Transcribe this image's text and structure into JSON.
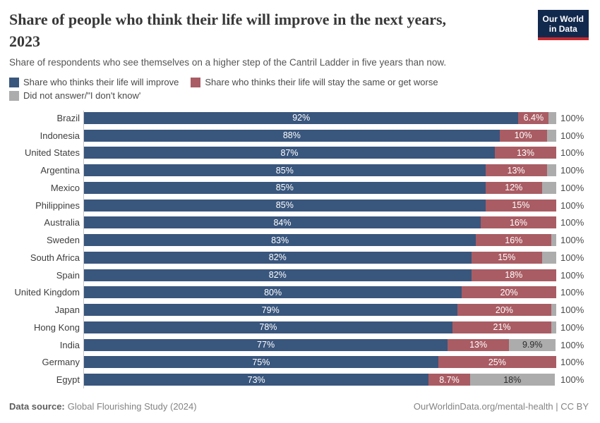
{
  "header": {
    "title_line1": "Share of people who think their life will improve in the next years,",
    "title_line2": "2023",
    "subtitle": "Share of respondents who see themselves on a higher step of the Cantril Ladder in five years than now.",
    "logo_line1": "Our World",
    "logo_line2": "in Data",
    "logo_colors": {
      "background": "#12294E",
      "stripe": "#C5292E"
    }
  },
  "chart_data": {
    "type": "bar",
    "stacked": true,
    "orientation": "horizontal",
    "title": "Share of people who think their life will improve in the next years, 2023",
    "unit": "%",
    "xlim": [
      0,
      100
    ],
    "grid": false,
    "legend_position": "top",
    "row_total_label": "100%",
    "categories": [
      "Brazil",
      "Indonesia",
      "United States",
      "Argentina",
      "Mexico",
      "Philippines",
      "Australia",
      "Sweden",
      "South Africa",
      "Spain",
      "United Kingdom",
      "Japan",
      "Hong Kong",
      "India",
      "Germany",
      "Egypt"
    ],
    "series": [
      {
        "name": "Share who thinks their life will improve",
        "color": "#39567D",
        "label_color": "#FFFFFF",
        "values": [
          92,
          88,
          87,
          85,
          85,
          85,
          84,
          83,
          82,
          82,
          80,
          79,
          78,
          77,
          75,
          73
        ],
        "labels": [
          "92%",
          "88%",
          "87%",
          "85%",
          "85%",
          "85%",
          "84%",
          "83%",
          "82%",
          "82%",
          "80%",
          "79%",
          "78%",
          "77%",
          "75%",
          "73%"
        ]
      },
      {
        "name": "Share who thinks their life will stay the same or get worse",
        "color": "#A95C63",
        "label_color": "#FFFFFF",
        "values": [
          6.4,
          10,
          13,
          13,
          12,
          15,
          16,
          16,
          15,
          18,
          20,
          20,
          21,
          13,
          25,
          8.7
        ],
        "labels": [
          "6.4%",
          "10%",
          "13%",
          "13%",
          "12%",
          "15%",
          "16%",
          "16%",
          "15%",
          "18%",
          "20%",
          "20%",
          "21%",
          "13%",
          "25%",
          "8.7%"
        ]
      },
      {
        "name": "Did not answer/\"I don't know'",
        "color": "#ACACAC",
        "label_color": "#2B2B2B",
        "values": [
          1.6,
          2,
          0,
          2,
          3,
          0,
          0,
          1,
          3,
          0,
          0,
          1,
          1,
          9.9,
          0,
          18
        ],
        "labels": [
          "",
          "",
          "",
          "",
          "",
          "",
          "",
          "",
          "",
          "",
          "",
          "",
          "",
          "9.9%",
          "",
          "18%"
        ]
      }
    ]
  },
  "footer": {
    "data_source_label": "Data source:",
    "data_source_value": "Global Flourishing Study (2024)",
    "credit": "OurWorldinData.org/mental-health | CC BY"
  }
}
